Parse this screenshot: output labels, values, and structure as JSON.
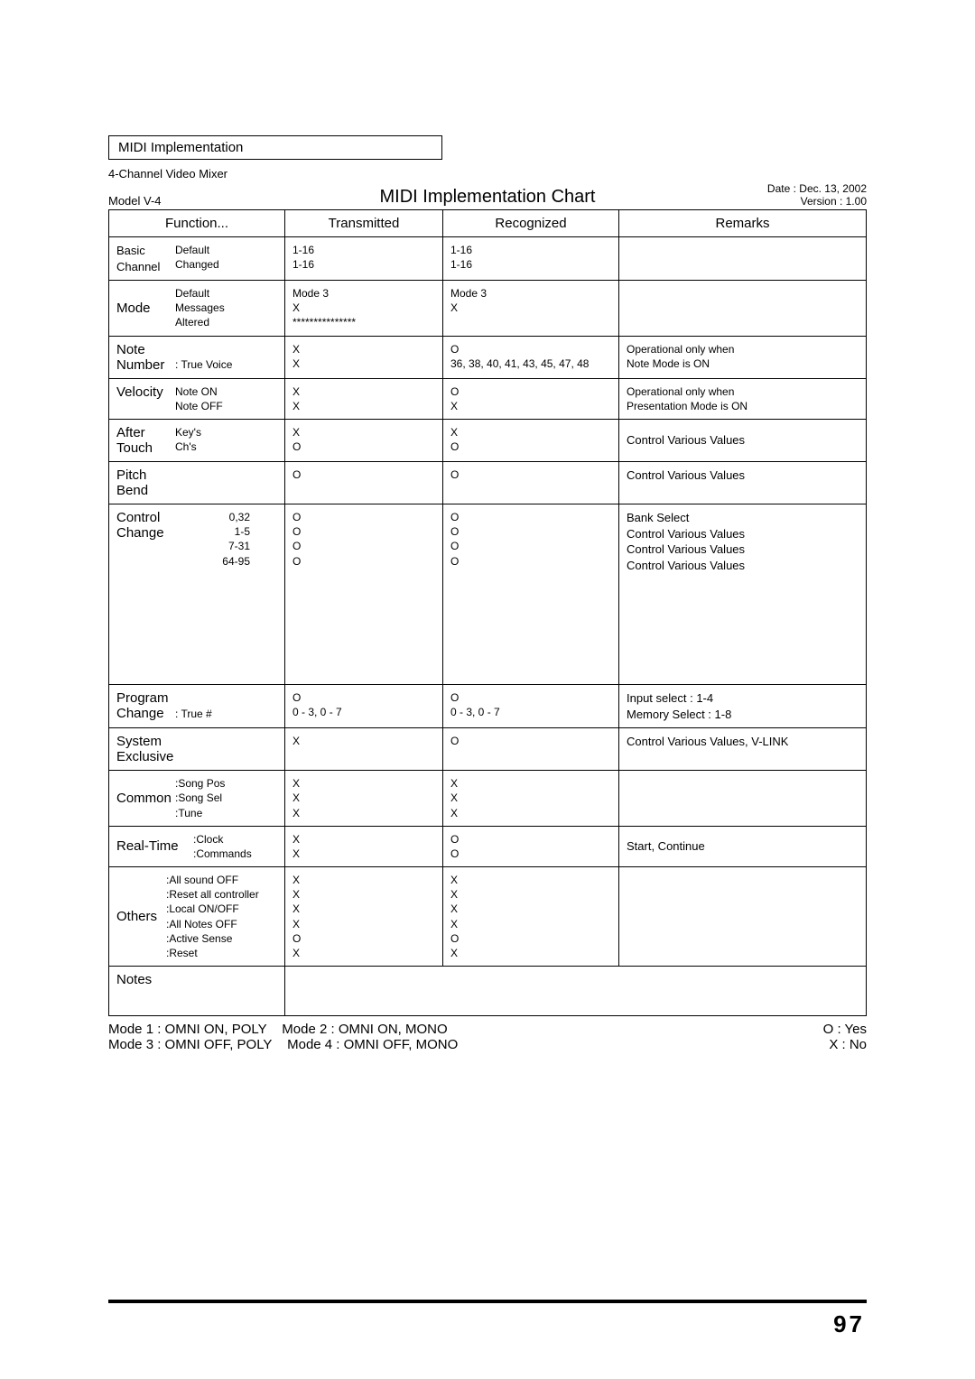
{
  "section_title": "MIDI Implementation",
  "subtitle": "4-Channel Video Mixer",
  "model": "Model V-4",
  "chart_title": "MIDI Implementation Chart",
  "date": "Date : Dec. 13, 2002",
  "version": "Version : 1.00",
  "headers": {
    "function": "Function...",
    "tx": "Transmitted",
    "rx": "Recognized",
    "remarks": "Remarks"
  },
  "rows": {
    "basic": {
      "l": "Basic\nChannel",
      "r": "Default\nChanged",
      "tx": "1-16\n1-16",
      "rx": "1-16\n1-16",
      "rm": ""
    },
    "mode": {
      "l": "Mode",
      "r": "Default\nMessages\nAltered",
      "tx": "Mode 3\nX\n***************",
      "rx": "Mode 3\nX",
      "rm": ""
    },
    "note": {
      "l": "Note\nNumber",
      "r": ": True Voice",
      "tx": "X\nX",
      "rx": "O\n36, 38, 40, 41, 43, 45, 47, 48",
      "rm": "Operational only when\nNote Mode is ON"
    },
    "velocity": {
      "l": "Velocity",
      "r": "Note ON\nNote OFF",
      "tx": "X\nX",
      "rx": "O\nX",
      "rm": "Operational only when\nPresentation Mode is ON"
    },
    "after": {
      "l": "After\nTouch",
      "r": "Key's\nCh's",
      "tx": "X\nO",
      "rx": "X\nO",
      "rm": "Control Various Values"
    },
    "pitch": {
      "l": "Pitch Bend",
      "r": "",
      "tx": "O",
      "rx": "O",
      "rm": "Control Various Values"
    },
    "cc": {
      "l": "Control\nChange",
      "r": "0,32\n1-5\n7-31\n64-95",
      "tx": "O\nO\nO\nO",
      "rx": "O\nO\nO\nO",
      "rm": "Bank Select\nControl Various Values\nControl Various Values\nControl Various Values"
    },
    "prog": {
      "l": "Program\nChange",
      "r": ": True #",
      "tx": "O\n0 - 3, 0 - 7",
      "rx": "O\n0 - 3, 0 - 7",
      "rm": "Input select : 1-4\nMemory Select : 1-8"
    },
    "sysex": {
      "l": "System Exclusive",
      "r": "",
      "tx": "X",
      "rx": "O",
      "rm": "Control Various Values, V-LINK"
    },
    "common": {
      "l": "Common",
      "r": ":Song Pos\n:Song Sel\n:Tune",
      "tx": "X\nX\nX",
      "rx": "X\nX\nX",
      "rm": ""
    },
    "rt": {
      "l": "Real-Time",
      "r": ":Clock\n:Commands",
      "tx": "X\nX",
      "rx": "O\nO",
      "rm": "Start, Continue"
    },
    "others": {
      "l": "Others",
      "r": ":All sound OFF\n:Reset all controller\n:Local ON/OFF\n:All Notes OFF\n:Active Sense\n:Reset",
      "tx": "X\nX\nX\nX\nO\nX",
      "rx": "X\nX\nX\nX\nO\nX",
      "rm": ""
    },
    "notes": {
      "l": "Notes",
      "body": ""
    }
  },
  "modes": {
    "m1": "Mode 1 : OMNI ON, POLY",
    "m2": "Mode 2 : OMNI ON, MONO",
    "m3": "Mode 3 : OMNI OFF, POLY",
    "m4": "Mode 4 : OMNI OFF, MONO",
    "yes": "O : Yes",
    "no": "X : No"
  },
  "page": "97"
}
